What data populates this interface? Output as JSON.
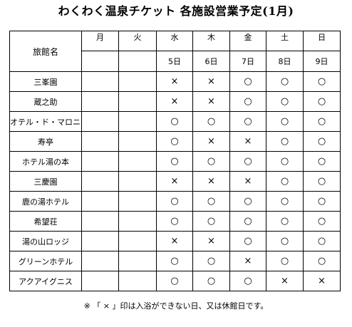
{
  "title": "わくわく温泉チケット 各施設営業予定(1月)",
  "header": {
    "name_label": "旅館名",
    "days": [
      "月",
      "火",
      "水",
      "木",
      "金",
      "土",
      "日"
    ],
    "dates": [
      "",
      "",
      "5日",
      "6日",
      "7日",
      "8日",
      "9日"
    ]
  },
  "rows": [
    {
      "name": "三峯園",
      "marks": [
        "",
        "",
        "×",
        "×",
        "○",
        "○",
        "○"
      ]
    },
    {
      "name": "蔵之助",
      "marks": [
        "",
        "",
        "×",
        "×",
        "○",
        "○",
        "○"
      ]
    },
    {
      "name": "オテル・ド・マロニエ",
      "marks": [
        "",
        "",
        "○",
        "○",
        "○",
        "○",
        "○"
      ]
    },
    {
      "name": "寿亭",
      "marks": [
        "",
        "",
        "○",
        "×",
        "×",
        "○",
        "○"
      ]
    },
    {
      "name": "ホテル湯の本",
      "marks": [
        "",
        "",
        "○",
        "○",
        "○",
        "○",
        "○"
      ]
    },
    {
      "name": "三慶園",
      "marks": [
        "",
        "",
        "×",
        "×",
        "×",
        "○",
        "○"
      ]
    },
    {
      "name": "鹿の湯ホテル",
      "marks": [
        "",
        "",
        "○",
        "○",
        "○",
        "○",
        "○"
      ]
    },
    {
      "name": "希望荘",
      "marks": [
        "",
        "",
        "○",
        "○",
        "○",
        "○",
        "○"
      ]
    },
    {
      "name": "湯の山ロッジ",
      "marks": [
        "",
        "",
        "×",
        "×",
        "○",
        "○",
        "○"
      ]
    },
    {
      "name": "グリーンホテル",
      "marks": [
        "",
        "",
        "○",
        "○",
        "×",
        "○",
        "○"
      ]
    },
    {
      "name": "アクアイグニス",
      "marks": [
        "",
        "",
        "○",
        "○",
        "○",
        "×",
        "×"
      ]
    }
  ],
  "footnote": "※ 「 × 」印は入浴ができない日、又は休館日です。"
}
